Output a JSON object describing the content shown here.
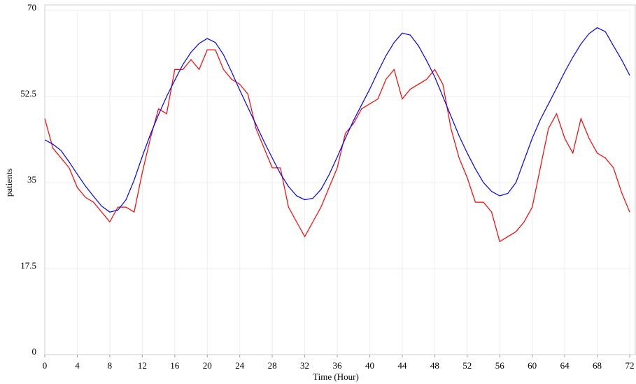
{
  "chart_data": {
    "type": "line",
    "xlabel": "Time (Hour)",
    "ylabel": "patients",
    "x": [
      0,
      1,
      2,
      3,
      4,
      5,
      6,
      7,
      8,
      9,
      10,
      11,
      12,
      13,
      14,
      15,
      16,
      17,
      18,
      19,
      20,
      21,
      22,
      23,
      24,
      25,
      26,
      27,
      28,
      29,
      30,
      31,
      32,
      33,
      34,
      35,
      36,
      37,
      38,
      39,
      40,
      41,
      42,
      43,
      44,
      45,
      46,
      47,
      48,
      49,
      50,
      51,
      52,
      53,
      54,
      55,
      56,
      57,
      58,
      59,
      60,
      61,
      62,
      63,
      64,
      65,
      66,
      67,
      68,
      69,
      70,
      71,
      72
    ],
    "series": [
      {
        "color": "#0000ff",
        "values": [
          43.7,
          42.8,
          41.5,
          39.2,
          36.7,
          34.3,
          32.2,
          30.2,
          29,
          29.4,
          31.5,
          35.5,
          40.3,
          44.8,
          48.8,
          52.5,
          55.8,
          59,
          61.5,
          63.3,
          64.3,
          63.5,
          61,
          57.5,
          53.8,
          50.3,
          46.8,
          43.3,
          40,
          36.8,
          34.2,
          32.3,
          31.5,
          31.8,
          33.6,
          36.6,
          40.2,
          44,
          47.6,
          50.8,
          54,
          57.5,
          60.8,
          63.5,
          65.4,
          65,
          62.8,
          59.8,
          56.5,
          52.5,
          48.5,
          44.5,
          41,
          37.8,
          35,
          33.2,
          32.3,
          32.8,
          35,
          39.5,
          44,
          47.8,
          51,
          54.2,
          57.5,
          60.5,
          63.2,
          65.3,
          66.5,
          65.7,
          62.8,
          60,
          56.8
        ]
      },
      {
        "color": "#ff0000",
        "values": [
          48,
          42,
          40,
          38,
          34,
          32,
          31,
          29,
          27,
          30,
          30,
          29,
          37,
          44,
          50,
          49,
          58,
          58,
          60,
          58,
          62,
          62,
          58,
          56,
          55,
          53,
          46,
          42,
          38,
          38,
          30,
          27,
          24,
          27,
          30,
          34,
          38,
          45,
          47,
          50,
          51,
          52,
          56,
          58,
          52,
          54,
          55,
          56,
          58,
          55,
          46,
          40,
          36,
          31,
          31,
          29,
          23,
          24,
          25,
          27,
          30,
          38,
          46,
          49,
          44,
          41,
          48,
          44,
          41,
          40,
          38,
          33,
          29
        ]
      }
    ],
    "xlim": [
      0,
      72
    ],
    "xticks": [
      0,
      4,
      8,
      12,
      16,
      20,
      24,
      28,
      32,
      36,
      40,
      44,
      48,
      52,
      56,
      60,
      64,
      68,
      72
    ],
    "ylim": [
      0,
      70
    ],
    "yticks": [
      0,
      17.5,
      35,
      52.5,
      70
    ],
    "grid": true
  }
}
